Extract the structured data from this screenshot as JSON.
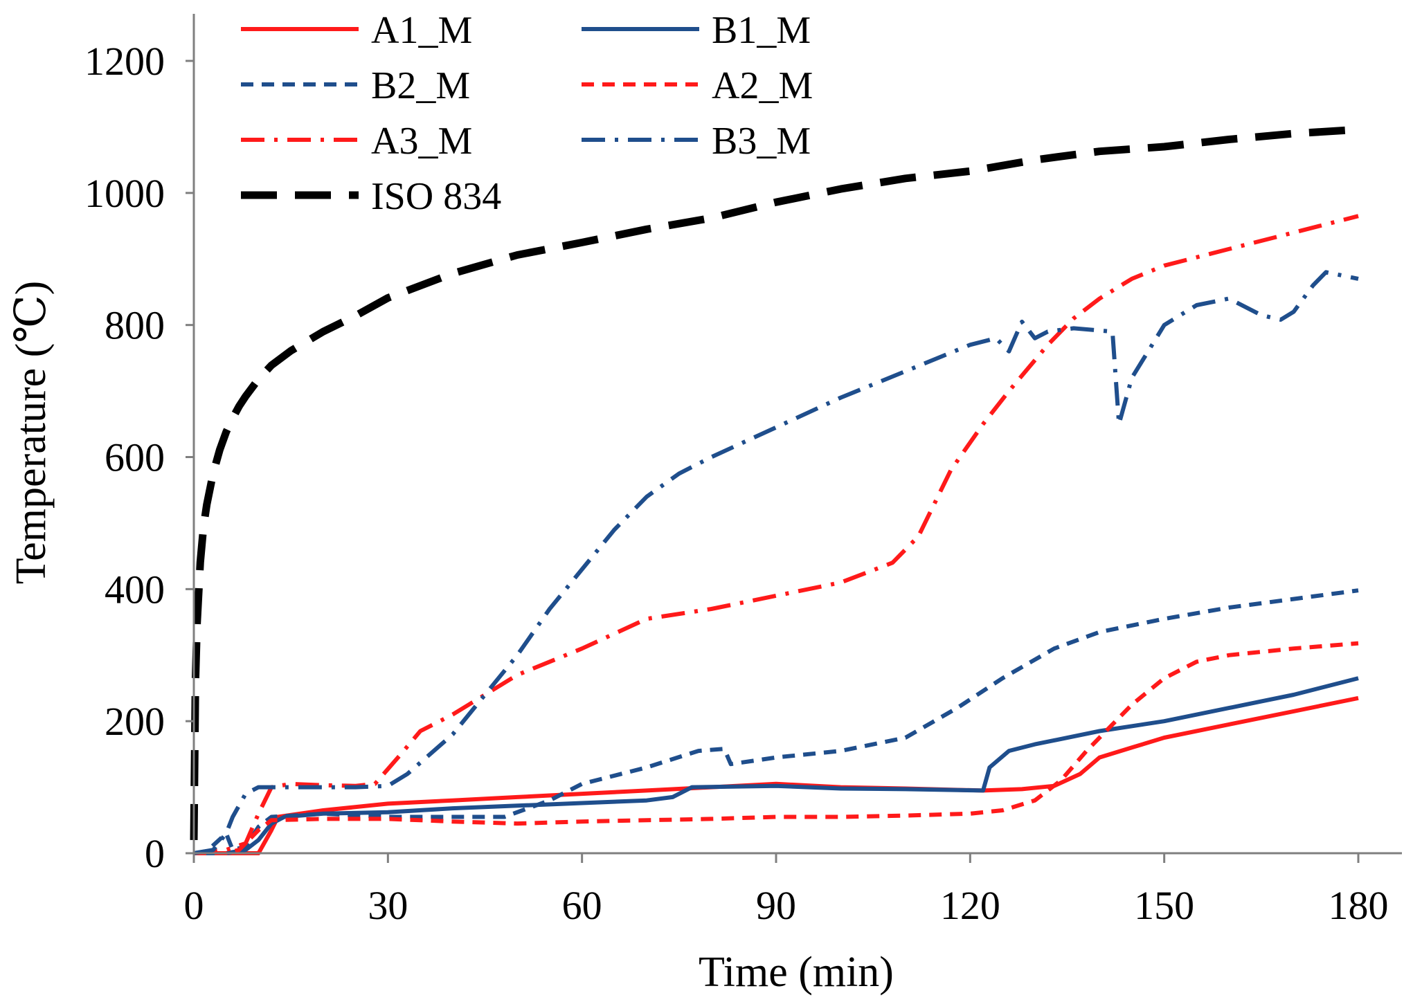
{
  "chart_data": {
    "type": "line",
    "title": "",
    "xlabel": "Time (min)",
    "ylabel": "Temperature (℃)",
    "xlim": [
      0,
      180
    ],
    "ylim": [
      0,
      1200
    ],
    "xticks": [
      0,
      30,
      60,
      90,
      120,
      150,
      180
    ],
    "yticks": [
      0,
      200,
      400,
      600,
      800,
      1000,
      1200
    ],
    "grid": false,
    "legend_position": "top-left",
    "series": [
      {
        "name": "A1_M",
        "color": "#ff1a1a",
        "style": "solid",
        "points": [
          [
            0,
            0
          ],
          [
            10,
            0
          ],
          [
            12,
            35
          ],
          [
            13,
            55
          ],
          [
            20,
            65
          ],
          [
            30,
            75
          ],
          [
            40,
            80
          ],
          [
            50,
            85
          ],
          [
            60,
            90
          ],
          [
            70,
            95
          ],
          [
            80,
            100
          ],
          [
            90,
            105
          ],
          [
            100,
            100
          ],
          [
            110,
            98
          ],
          [
            122,
            95
          ],
          [
            128,
            97
          ],
          [
            133,
            102
          ],
          [
            137,
            120
          ],
          [
            140,
            145
          ],
          [
            145,
            160
          ],
          [
            150,
            175
          ],
          [
            160,
            195
          ],
          [
            170,
            215
          ],
          [
            180,
            235
          ]
        ]
      },
      {
        "name": "B1_M",
        "color": "#1f4e8c",
        "style": "solid",
        "points": [
          [
            0,
            0
          ],
          [
            5,
            0
          ],
          [
            8,
            5
          ],
          [
            10,
            20
          ],
          [
            12,
            45
          ],
          [
            14,
            55
          ],
          [
            20,
            60
          ],
          [
            30,
            62
          ],
          [
            40,
            68
          ],
          [
            50,
            72
          ],
          [
            60,
            76
          ],
          [
            70,
            80
          ],
          [
            74,
            85
          ],
          [
            77,
            100
          ],
          [
            90,
            102
          ],
          [
            100,
            98
          ],
          [
            110,
            97
          ],
          [
            122,
            95
          ],
          [
            123,
            130
          ],
          [
            126,
            155
          ],
          [
            130,
            165
          ],
          [
            140,
            185
          ],
          [
            150,
            200
          ],
          [
            160,
            220
          ],
          [
            170,
            240
          ],
          [
            180,
            265
          ]
        ]
      },
      {
        "name": "B2_M",
        "color": "#1f4e8c",
        "style": "dashed",
        "points": [
          [
            0,
            0
          ],
          [
            2,
            3
          ],
          [
            5,
            30
          ],
          [
            6,
            5
          ],
          [
            8,
            10
          ],
          [
            10,
            40
          ],
          [
            12,
            55
          ],
          [
            20,
            60
          ],
          [
            30,
            55
          ],
          [
            40,
            55
          ],
          [
            48,
            55
          ],
          [
            55,
            80
          ],
          [
            60,
            105
          ],
          [
            70,
            130
          ],
          [
            78,
            155
          ],
          [
            82,
            158
          ],
          [
            83,
            135
          ],
          [
            90,
            145
          ],
          [
            100,
            155
          ],
          [
            110,
            175
          ],
          [
            118,
            220
          ],
          [
            125,
            265
          ],
          [
            133,
            310
          ],
          [
            140,
            335
          ],
          [
            150,
            355
          ],
          [
            160,
            372
          ],
          [
            170,
            385
          ],
          [
            180,
            398
          ]
        ]
      },
      {
        "name": "A2_M",
        "color": "#ff1a1a",
        "style": "dashed",
        "points": [
          [
            0,
            0
          ],
          [
            5,
            0
          ],
          [
            7,
            5
          ],
          [
            10,
            35
          ],
          [
            12,
            50
          ],
          [
            20,
            52
          ],
          [
            30,
            52
          ],
          [
            40,
            48
          ],
          [
            50,
            45
          ],
          [
            60,
            48
          ],
          [
            70,
            50
          ],
          [
            80,
            52
          ],
          [
            90,
            55
          ],
          [
            100,
            55
          ],
          [
            110,
            57
          ],
          [
            120,
            60
          ],
          [
            125,
            65
          ],
          [
            130,
            80
          ],
          [
            134,
            110
          ],
          [
            138,
            155
          ],
          [
            142,
            195
          ],
          [
            145,
            225
          ],
          [
            150,
            265
          ],
          [
            155,
            290
          ],
          [
            160,
            300
          ],
          [
            170,
            310
          ],
          [
            180,
            318
          ]
        ]
      },
      {
        "name": "A3_M",
        "color": "#ff1a1a",
        "style": "dashdot",
        "points": [
          [
            0,
            0
          ],
          [
            5,
            5
          ],
          [
            8,
            15
          ],
          [
            10,
            60
          ],
          [
            12,
            100
          ],
          [
            15,
            105
          ],
          [
            20,
            103
          ],
          [
            25,
            102
          ],
          [
            28,
            105
          ],
          [
            32,
            150
          ],
          [
            35,
            185
          ],
          [
            40,
            210
          ],
          [
            45,
            240
          ],
          [
            50,
            270
          ],
          [
            60,
            310
          ],
          [
            70,
            355
          ],
          [
            80,
            370
          ],
          [
            90,
            390
          ],
          [
            100,
            410
          ],
          [
            108,
            440
          ],
          [
            112,
            480
          ],
          [
            117,
            580
          ],
          [
            122,
            650
          ],
          [
            126,
            700
          ],
          [
            132,
            770
          ],
          [
            136,
            810
          ],
          [
            140,
            840
          ],
          [
            145,
            870
          ],
          [
            150,
            890
          ],
          [
            160,
            915
          ],
          [
            170,
            940
          ],
          [
            180,
            965
          ]
        ]
      },
      {
        "name": "B3_M",
        "color": "#1f4e8c",
        "style": "dashdot",
        "points": [
          [
            0,
            0
          ],
          [
            3,
            5
          ],
          [
            5,
            30
          ],
          [
            6,
            55
          ],
          [
            8,
            90
          ],
          [
            10,
            100
          ],
          [
            20,
            100
          ],
          [
            25,
            100
          ],
          [
            30,
            102
          ],
          [
            33,
            120
          ],
          [
            40,
            180
          ],
          [
            45,
            240
          ],
          [
            50,
            300
          ],
          [
            55,
            370
          ],
          [
            60,
            430
          ],
          [
            65,
            490
          ],
          [
            70,
            540
          ],
          [
            75,
            575
          ],
          [
            80,
            600
          ],
          [
            90,
            645
          ],
          [
            100,
            690
          ],
          [
            110,
            730
          ],
          [
            120,
            770
          ],
          [
            124,
            780
          ],
          [
            126,
            760
          ],
          [
            128,
            805
          ],
          [
            130,
            780
          ],
          [
            132,
            790
          ],
          [
            136,
            795
          ],
          [
            142,
            790
          ],
          [
            143,
            650
          ],
          [
            145,
            720
          ],
          [
            150,
            800
          ],
          [
            155,
            830
          ],
          [
            160,
            840
          ],
          [
            165,
            815
          ],
          [
            168,
            808
          ],
          [
            170,
            820
          ],
          [
            173,
            860
          ],
          [
            175,
            880
          ],
          [
            180,
            870
          ]
        ]
      },
      {
        "name": "ISO 834",
        "color": "#000000",
        "style": "longdash",
        "points": [
          [
            0,
            20
          ],
          [
            0.25,
            260
          ],
          [
            0.5,
            349
          ],
          [
            1,
            441
          ],
          [
            1.5,
            495
          ],
          [
            2,
            528
          ],
          [
            3,
            576
          ],
          [
            4,
            611
          ],
          [
            5,
            638
          ],
          [
            6,
            659
          ],
          [
            7,
            677
          ],
          [
            8,
            692
          ],
          [
            10,
            718
          ],
          [
            12,
            739
          ],
          [
            15,
            761
          ],
          [
            20,
            790
          ],
          [
            25,
            814
          ],
          [
            30,
            841
          ],
          [
            40,
            878
          ],
          [
            50,
            906
          ],
          [
            60,
            925
          ],
          [
            70,
            945
          ],
          [
            80,
            962
          ],
          [
            90,
            986
          ],
          [
            100,
            1006
          ],
          [
            110,
            1022
          ],
          [
            120,
            1033
          ],
          [
            130,
            1050
          ],
          [
            140,
            1063
          ],
          [
            150,
            1070
          ],
          [
            160,
            1081
          ],
          [
            170,
            1090
          ],
          [
            180,
            1096
          ]
        ]
      }
    ]
  }
}
